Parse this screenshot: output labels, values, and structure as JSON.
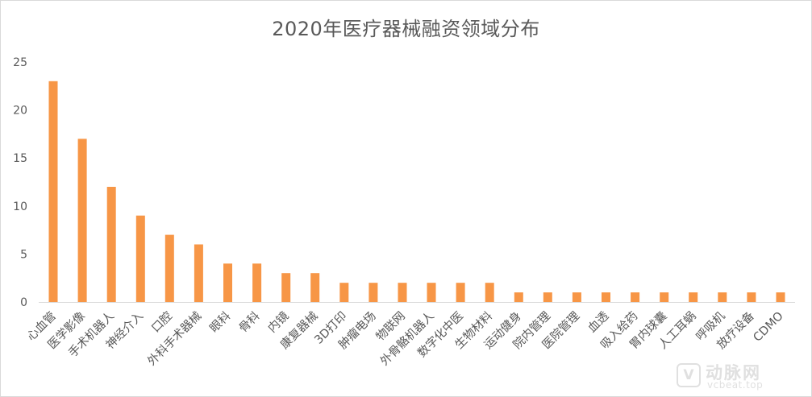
{
  "chart_data": {
    "type": "bar",
    "title": "2020年医疗器械融资领域分布",
    "xlabel": "",
    "ylabel": "",
    "ylim": [
      0,
      25
    ],
    "yticks": [
      0,
      5,
      10,
      15,
      20,
      25
    ],
    "grid": false,
    "legend": "none",
    "bar_color": "#F79646",
    "categories": [
      "心血管",
      "医学影像",
      "手术机器人",
      "神经介入",
      "口腔",
      "外科手术器械",
      "眼科",
      "骨科",
      "内镜",
      "康复器械",
      "3D打印",
      "肿瘤电场",
      "物联网",
      "外骨骼机器人",
      "数字化中医",
      "生物材料",
      "运动健身",
      "院内管理",
      "医院管理",
      "血透",
      "吸入给药",
      "胃内球囊",
      "人工耳蜗",
      "呼吸机",
      "放疗设备",
      "CDMO"
    ],
    "values": [
      23,
      17,
      12,
      9,
      7,
      6,
      4,
      4,
      3,
      3,
      2,
      2,
      2,
      2,
      2,
      2,
      1,
      1,
      1,
      1,
      1,
      1,
      1,
      1,
      1,
      1
    ]
  },
  "watermark": {
    "logo_glyph": "V",
    "name": "动脉网",
    "url": "vcbeat.top"
  }
}
